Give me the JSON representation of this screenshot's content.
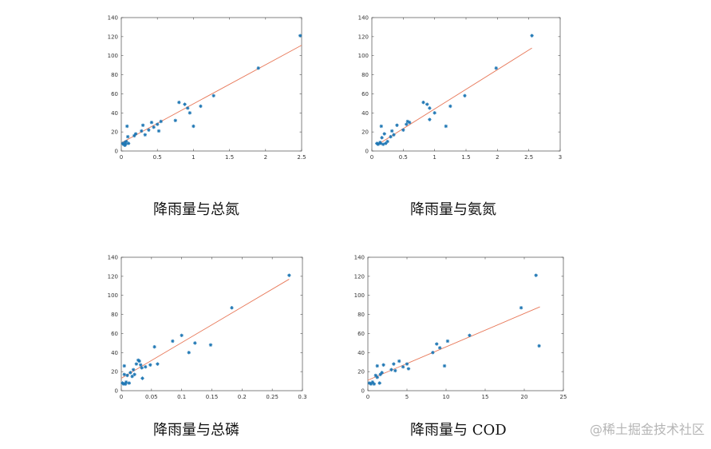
{
  "charts": [
    {
      "type": "scatter",
      "caption": "降雨量与总氮",
      "xlim": [
        0,
        2.5
      ],
      "ylim": [
        0,
        140
      ],
      "xticks": [
        "0",
        "0.5",
        "1",
        "1.5",
        "2",
        "2.5"
      ],
      "yticks": [
        "0",
        "20",
        "40",
        "60",
        "80",
        "100",
        "120",
        "140"
      ],
      "xtick_values": [
        0,
        0.5,
        1,
        1.5,
        2,
        2.5
      ],
      "ytick_values": [
        0,
        20,
        40,
        60,
        80,
        100,
        120,
        140
      ],
      "points": [
        [
          0.02,
          8
        ],
        [
          0.03,
          7
        ],
        [
          0.05,
          6
        ],
        [
          0.05,
          9
        ],
        [
          0.06,
          7
        ],
        [
          0.07,
          10
        ],
        [
          0.08,
          26
        ],
        [
          0.09,
          15
        ],
        [
          0.1,
          8
        ],
        [
          0.18,
          16
        ],
        [
          0.2,
          18
        ],
        [
          0.28,
          21
        ],
        [
          0.3,
          27
        ],
        [
          0.33,
          17
        ],
        [
          0.38,
          22
        ],
        [
          0.42,
          30
        ],
        [
          0.45,
          25
        ],
        [
          0.5,
          28
        ],
        [
          0.52,
          21
        ],
        [
          0.55,
          31
        ],
        [
          0.75,
          32
        ],
        [
          0.8,
          51
        ],
        [
          0.88,
          49
        ],
        [
          0.92,
          45
        ],
        [
          0.95,
          40
        ],
        [
          1.0,
          26
        ],
        [
          1.1,
          47
        ],
        [
          1.28,
          58
        ],
        [
          1.9,
          87
        ],
        [
          2.48,
          121
        ]
      ],
      "fit": [
        [
          0,
          8.5
        ],
        [
          2.5,
          111
        ]
      ]
    },
    {
      "type": "scatter",
      "caption": "降雨量与氨氮",
      "xlim": [
        0,
        3
      ],
      "ylim": [
        0,
        140
      ],
      "xticks": [
        "0",
        "0.5",
        "1",
        "1.5",
        "2",
        "2.5",
        "3"
      ],
      "yticks": [
        "0",
        "20",
        "40",
        "60",
        "80",
        "100",
        "120",
        "140"
      ],
      "xtick_values": [
        0,
        0.5,
        1,
        1.5,
        2,
        2.5,
        3
      ],
      "ytick_values": [
        0,
        20,
        40,
        60,
        80,
        100,
        120,
        140
      ],
      "points": [
        [
          0.08,
          8
        ],
        [
          0.1,
          7
        ],
        [
          0.13,
          9
        ],
        [
          0.14,
          8
        ],
        [
          0.15,
          26
        ],
        [
          0.16,
          14
        ],
        [
          0.18,
          7
        ],
        [
          0.2,
          18
        ],
        [
          0.22,
          8
        ],
        [
          0.25,
          10
        ],
        [
          0.3,
          15
        ],
        [
          0.32,
          21
        ],
        [
          0.35,
          17
        ],
        [
          0.4,
          27
        ],
        [
          0.5,
          22
        ],
        [
          0.55,
          28
        ],
        [
          0.57,
          31
        ],
        [
          0.6,
          30
        ],
        [
          0.82,
          51
        ],
        [
          0.88,
          49
        ],
        [
          0.92,
          45
        ],
        [
          0.92,
          33
        ],
        [
          1.0,
          40
        ],
        [
          1.18,
          26
        ],
        [
          1.25,
          47
        ],
        [
          1.48,
          58
        ],
        [
          1.98,
          87
        ],
        [
          2.55,
          121
        ]
      ],
      "fit": [
        [
          0.1,
          7
        ],
        [
          2.55,
          108
        ]
      ]
    },
    {
      "type": "scatter",
      "caption": "降雨量与总磷",
      "xlim": [
        0,
        0.3
      ],
      "ylim": [
        0,
        140
      ],
      "xticks": [
        "0",
        "0.05",
        "0.1",
        "0.15",
        "0.2",
        "0.25",
        "0.3"
      ],
      "yticks": [
        "0",
        "20",
        "40",
        "60",
        "80",
        "100",
        "120",
        "140"
      ],
      "xtick_values": [
        0,
        0.05,
        0.1,
        0.15,
        0.2,
        0.25,
        0.3
      ],
      "ytick_values": [
        0,
        20,
        40,
        60,
        80,
        100,
        120,
        140
      ],
      "points": [
        [
          0.002,
          8
        ],
        [
          0.004,
          7
        ],
        [
          0.005,
          17
        ],
        [
          0.005,
          26
        ],
        [
          0.007,
          7
        ],
        [
          0.008,
          9
        ],
        [
          0.01,
          16
        ],
        [
          0.013,
          8
        ],
        [
          0.015,
          19
        ],
        [
          0.018,
          15
        ],
        [
          0.02,
          22
        ],
        [
          0.022,
          17
        ],
        [
          0.025,
          28
        ],
        [
          0.028,
          32
        ],
        [
          0.03,
          31
        ],
        [
          0.032,
          27
        ],
        [
          0.034,
          24
        ],
        [
          0.035,
          13
        ],
        [
          0.04,
          25
        ],
        [
          0.048,
          27
        ],
        [
          0.055,
          46
        ],
        [
          0.06,
          28
        ],
        [
          0.085,
          52
        ],
        [
          0.1,
          58
        ],
        [
          0.112,
          40
        ],
        [
          0.122,
          50
        ],
        [
          0.148,
          48
        ],
        [
          0.183,
          87
        ],
        [
          0.278,
          121
        ]
      ],
      "fit": [
        [
          0,
          13
        ],
        [
          0.278,
          117
        ]
      ]
    },
    {
      "type": "scatter",
      "caption": "降雨量与 COD",
      "xlim": [
        0,
        25
      ],
      "ylim": [
        0,
        140
      ],
      "xticks": [
        "0",
        "5",
        "10",
        "15",
        "20",
        "25"
      ],
      "yticks": [
        "0",
        "20",
        "40",
        "60",
        "80",
        "100",
        "120",
        "140"
      ],
      "xtick_values": [
        0,
        5,
        10,
        15,
        20,
        25
      ],
      "ytick_values": [
        0,
        20,
        40,
        60,
        80,
        100,
        120,
        140
      ],
      "points": [
        [
          0.2,
          8
        ],
        [
          0.4,
          7
        ],
        [
          0.6,
          9
        ],
        [
          0.8,
          7
        ],
        [
          1.0,
          16
        ],
        [
          1.2,
          14
        ],
        [
          1.2,
          26
        ],
        [
          1.5,
          8
        ],
        [
          1.6,
          17
        ],
        [
          1.8,
          19
        ],
        [
          2.0,
          27
        ],
        [
          3.0,
          22
        ],
        [
          3.3,
          28
        ],
        [
          3.5,
          21
        ],
        [
          4.0,
          31
        ],
        [
          4.5,
          25
        ],
        [
          5.0,
          28
        ],
        [
          5.2,
          23
        ],
        [
          8.3,
          40
        ],
        [
          8.8,
          49
        ],
        [
          9.2,
          45
        ],
        [
          9.8,
          26
        ],
        [
          10.2,
          52
        ],
        [
          13.0,
          58
        ],
        [
          19.6,
          87
        ],
        [
          21.5,
          121
        ],
        [
          21.9,
          47
        ]
      ],
      "fit": [
        [
          0,
          11
        ],
        [
          22,
          88
        ]
      ]
    }
  ],
  "watermark": "@稀土掘金技术社区"
}
